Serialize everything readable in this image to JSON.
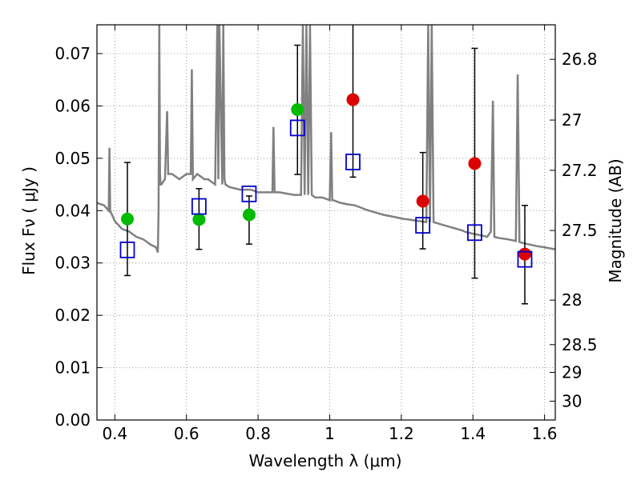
{
  "chart_data": {
    "type": "scatter",
    "title": "",
    "xlabel": "Wavelength  λ (μm)",
    "ylabel": "Flux  Fν  ( μJy )",
    "ylabel_right": "Magnitude (AB)",
    "xlim": [
      0.35,
      1.63
    ],
    "ylim": [
      0.0,
      0.0755
    ],
    "grid": true,
    "x_ticks": [
      0.4,
      0.6,
      0.8,
      1.0,
      1.2,
      1.4,
      1.6
    ],
    "x_tick_labels": [
      "0.4",
      "0.6",
      "0.8",
      "1",
      "1.2",
      "1.4",
      "1.6"
    ],
    "y_ticks": [
      0.0,
      0.01,
      0.02,
      0.03,
      0.04,
      0.05,
      0.06,
      0.07
    ],
    "y_tick_labels": [
      "0.00",
      "0.01",
      "0.02",
      "0.03",
      "0.04",
      "0.05",
      "0.06",
      "0.07"
    ],
    "right_ticks": [
      {
        "label": "26.8",
        "flux": 0.0689
      },
      {
        "label": "27",
        "flux": 0.0573
      },
      {
        "label": "27.2",
        "flux": 0.0477
      },
      {
        "label": "27.5",
        "flux": 0.0362
      },
      {
        "label": "28",
        "flux": 0.0229
      },
      {
        "label": "28.5",
        "flux": 0.0144
      },
      {
        "label": "29",
        "flux": 0.0091
      },
      {
        "label": "30",
        "flux": 0.0036
      }
    ],
    "colors": {
      "spectrum": "#808080",
      "green": "#00bb00",
      "red": "#dd0000",
      "model": "#0000cc",
      "errorbar": "#000000",
      "grid": "#999999"
    },
    "spectrum": {
      "x": [
        0.35,
        0.37,
        0.383,
        0.385,
        0.387,
        0.4,
        0.42,
        0.44,
        0.46,
        0.48,
        0.5,
        0.515,
        0.52,
        0.522,
        0.524,
        0.526,
        0.528,
        0.53,
        0.54,
        0.546,
        0.549,
        0.552,
        0.56,
        0.58,
        0.6,
        0.612,
        0.615,
        0.618,
        0.63,
        0.65,
        0.66,
        0.68,
        0.686,
        0.689,
        0.692,
        0.7,
        0.703,
        0.706,
        0.709,
        0.72,
        0.75,
        0.78,
        0.8,
        0.83,
        0.84,
        0.843,
        0.846,
        0.86,
        0.9,
        0.92,
        0.925,
        0.93,
        0.935,
        0.94,
        0.945,
        0.95,
        0.96,
        0.98,
        1.0,
        1.004,
        1.007,
        1.01,
        1.03,
        1.05,
        1.07,
        1.09,
        1.1,
        1.12,
        1.15,
        1.18,
        1.2,
        1.22,
        1.25,
        1.27,
        1.275,
        1.28,
        1.285,
        1.29,
        1.31,
        1.33,
        1.35,
        1.37,
        1.38,
        1.4,
        1.42,
        1.44,
        1.45,
        1.456,
        1.46,
        1.47,
        1.5,
        1.52,
        1.525,
        1.53,
        1.54,
        1.56,
        1.58,
        1.6,
        1.63
      ],
      "y": [
        0.0415,
        0.041,
        0.04,
        0.052,
        0.04,
        0.038,
        0.0365,
        0.036,
        0.035,
        0.0345,
        0.0335,
        0.033,
        0.032,
        0.04,
        0.0755,
        0.047,
        0.045,
        0.045,
        0.046,
        0.059,
        0.047,
        0.047,
        0.047,
        0.046,
        0.047,
        0.047,
        0.067,
        0.046,
        0.047,
        0.046,
        0.046,
        0.045,
        0.0755,
        0.046,
        0.0755,
        0.045,
        0.0755,
        0.046,
        0.045,
        0.0445,
        0.044,
        0.044,
        0.0435,
        0.0435,
        0.0435,
        0.056,
        0.0435,
        0.0435,
        0.043,
        0.043,
        0.0755,
        0.043,
        0.0755,
        0.043,
        0.0755,
        0.043,
        0.0425,
        0.0425,
        0.042,
        0.055,
        0.042,
        0.042,
        0.0415,
        0.0412,
        0.041,
        0.0405,
        0.0402,
        0.0398,
        0.0392,
        0.0388,
        0.0385,
        0.0383,
        0.038,
        0.0378,
        0.0755,
        0.0378,
        0.0755,
        0.0378,
        0.0374,
        0.037,
        0.0366,
        0.0362,
        0.0359,
        0.0356,
        0.0353,
        0.035,
        0.036,
        0.061,
        0.035,
        0.0348,
        0.0345,
        0.0342,
        0.066,
        0.034,
        0.0338,
        0.0335,
        0.0332,
        0.033,
        0.0326
      ]
    },
    "series": [
      {
        "marker": "green-circle",
        "x": [
          0.435,
          0.635,
          0.775,
          0.91
        ],
        "y": [
          0.0384,
          0.0383,
          0.0392,
          0.0593
        ]
      },
      {
        "marker": "red-circle",
        "x": [
          1.065,
          1.26,
          1.405,
          1.545
        ],
        "y": [
          0.0612,
          0.0418,
          0.049,
          0.0317
        ]
      },
      {
        "marker": "blue-open-square",
        "x": [
          0.435,
          0.635,
          0.775,
          0.91,
          1.065,
          1.26,
          1.405,
          1.545
        ],
        "y": [
          0.0325,
          0.0408,
          0.0432,
          0.0558,
          0.0493,
          0.0372,
          0.0358,
          0.0307
        ]
      }
    ],
    "errorbars": {
      "x": [
        0.435,
        0.635,
        0.775,
        0.91,
        1.065,
        1.26,
        1.405,
        1.545
      ],
      "low": [
        0.0276,
        0.0326,
        0.0336,
        0.0469,
        0.0464,
        0.0327,
        0.0271,
        0.0222
      ],
      "high": [
        0.0492,
        0.0442,
        0.0428,
        0.0716,
        0.0755,
        0.0511,
        0.071,
        0.041
      ]
    }
  }
}
